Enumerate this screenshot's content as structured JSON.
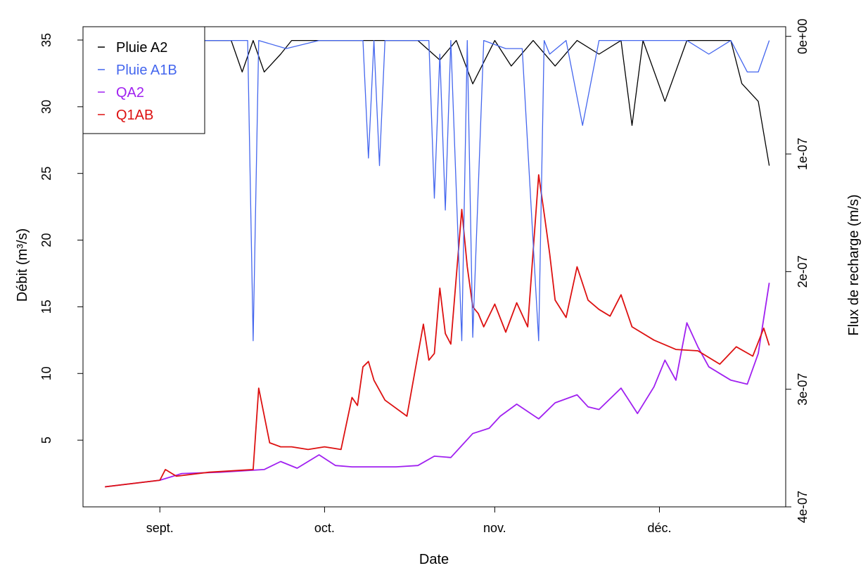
{
  "chart_data": {
    "type": "line",
    "xlabel": "Date",
    "ylabel": "Débit (m³/s)",
    "y2label": "Flux de recharge (m/s)",
    "x_ticks": [
      {
        "label": "sept.",
        "date": "2023-09-01"
      },
      {
        "label": "oct.",
        "date": "2023-10-01"
      },
      {
        "label": "nov.",
        "date": "2023-11-01"
      },
      {
        "label": "déc.",
        "date": "2023-12-01"
      }
    ],
    "xlim": [
      "2023-08-18",
      "2023-12-24"
    ],
    "ylim": [
      0,
      36
    ],
    "y_ticks": [
      5,
      10,
      15,
      20,
      25,
      30,
      35
    ],
    "y2lim": [
      -4e-07,
      8.2e-09
    ],
    "y2_ticks": [
      {
        "value": 0,
        "label": "0e+00"
      },
      {
        "value": -1e-07,
        "label": "1e-07"
      },
      {
        "value": -2e-07,
        "label": "2e-07"
      },
      {
        "value": -3e-07,
        "label": "3e-07"
      },
      {
        "value": -4e-07,
        "label": "4e-07"
      }
    ],
    "grid": false,
    "legend_position": "top-left",
    "series": [
      {
        "name": "QA2",
        "color": "#a020f0",
        "axis": "left",
        "x": [
          "2023-08-22",
          "2023-09-01",
          "2023-09-05",
          "2023-09-12",
          "2023-09-20",
          "2023-09-23",
          "2023-09-26",
          "2023-09-30",
          "2023-10-03",
          "2023-10-06",
          "2023-10-10",
          "2023-10-14",
          "2023-10-18",
          "2023-10-21",
          "2023-10-24",
          "2023-10-28",
          "2023-10-31",
          "2023-11-02",
          "2023-11-05",
          "2023-11-09",
          "2023-11-12",
          "2023-11-16",
          "2023-11-18",
          "2023-11-20",
          "2023-11-24",
          "2023-11-27",
          "2023-11-30",
          "2023-12-02",
          "2023-12-04",
          "2023-12-06",
          "2023-12-08",
          "2023-12-10",
          "2023-12-12",
          "2023-12-14",
          "2023-12-17",
          "2023-12-19",
          "2023-12-21"
        ],
        "y": [
          1.5,
          2.0,
          2.5,
          2.6,
          2.8,
          3.4,
          2.9,
          3.9,
          3.1,
          3.0,
          3.0,
          3.0,
          3.1,
          3.8,
          3.7,
          5.5,
          5.9,
          6.8,
          7.7,
          6.6,
          7.8,
          8.4,
          7.5,
          7.3,
          8.9,
          7.0,
          9.0,
          11.0,
          9.5,
          13.8,
          12.0,
          10.5,
          10.0,
          9.5,
          9.2,
          11.5,
          16.8
        ]
      },
      {
        "name": "Q1AB",
        "color": "#dd1111",
        "axis": "left",
        "x": [
          "2023-08-22",
          "2023-09-01",
          "2023-09-02",
          "2023-09-04",
          "2023-09-10",
          "2023-09-18",
          "2023-09-19",
          "2023-09-21",
          "2023-09-23",
          "2023-09-25",
          "2023-09-28",
          "2023-10-01",
          "2023-10-04",
          "2023-10-06",
          "2023-10-07",
          "2023-10-08",
          "2023-10-09",
          "2023-10-10",
          "2023-10-12",
          "2023-10-16",
          "2023-10-19",
          "2023-10-20",
          "2023-10-21",
          "2023-10-22",
          "2023-10-23",
          "2023-10-24",
          "2023-10-26",
          "2023-10-27",
          "2023-10-28",
          "2023-10-29",
          "2023-10-30",
          "2023-11-01",
          "2023-11-03",
          "2023-11-05",
          "2023-11-07",
          "2023-11-09",
          "2023-11-10",
          "2023-11-11",
          "2023-11-12",
          "2023-11-14",
          "2023-11-16",
          "2023-11-18",
          "2023-11-20",
          "2023-11-22",
          "2023-11-24",
          "2023-11-26",
          "2023-11-30",
          "2023-12-04",
          "2023-12-08",
          "2023-12-12",
          "2023-12-15",
          "2023-12-18",
          "2023-12-20",
          "2023-12-21"
        ],
        "y": [
          1.5,
          2.0,
          2.8,
          2.3,
          2.6,
          2.8,
          8.9,
          4.8,
          4.5,
          4.5,
          4.3,
          4.5,
          4.3,
          8.2,
          7.6,
          10.5,
          10.9,
          9.5,
          8.0,
          6.8,
          13.7,
          11.0,
          11.5,
          16.4,
          13.0,
          12.2,
          22.3,
          18.0,
          15.0,
          14.5,
          13.5,
          15.2,
          13.1,
          15.3,
          13.5,
          24.9,
          22.0,
          19.0,
          15.5,
          14.2,
          18.0,
          15.5,
          14.8,
          14.3,
          15.9,
          13.5,
          12.5,
          11.8,
          11.7,
          10.7,
          12.0,
          11.3,
          13.4,
          12.1
        ]
      },
      {
        "name": "Pluie A2",
        "color": "#000000",
        "axis": "right",
        "x": [
          "2023-08-18",
          "2023-08-24",
          "2023-08-30",
          "2023-09-04",
          "2023-09-09",
          "2023-09-14",
          "2023-09-16",
          "2023-09-18",
          "2023-09-20",
          "2023-09-23",
          "2023-09-25",
          "2023-09-27",
          "2023-09-30",
          "2023-10-05",
          "2023-10-10",
          "2023-10-14",
          "2023-10-18",
          "2023-10-22",
          "2023-10-25",
          "2023-10-28",
          "2023-11-01",
          "2023-11-04",
          "2023-11-08",
          "2023-11-12",
          "2023-11-16",
          "2023-11-20",
          "2023-11-24",
          "2023-11-26",
          "2023-11-28",
          "2023-12-02",
          "2023-12-06",
          "2023-12-10",
          "2023-12-14",
          "2023-12-16",
          "2023-12-19",
          "2023-12-21"
        ],
        "y": [
          -2.01e-08,
          -1.04e-08,
          -1.04e-08,
          -3.5e-09,
          -3.5e-09,
          -3.5e-09,
          -3.03e-08,
          -3.5e-09,
          -3.03e-08,
          -1.51e-08,
          -3.5e-09,
          -3.5e-09,
          -3.5e-09,
          -3.5e-09,
          -3.5e-09,
          -3.5e-09,
          -3.5e-09,
          -2.01e-08,
          -3.5e-09,
          -4.04e-08,
          -3.5e-09,
          -2.52e-08,
          -3.5e-09,
          -2.52e-08,
          -3.5e-09,
          -1.51e-08,
          -3.5e-09,
          -7.57e-08,
          -3.5e-09,
          -5.53e-08,
          -3.5e-09,
          -3.5e-09,
          -3.5e-09,
          -4.01e-08,
          -5.53e-08,
          -1.099e-07
        ]
      },
      {
        "name": "Pluie A1B",
        "color": "#4466ee",
        "axis": "right",
        "x": [
          "2023-08-18",
          "2023-08-28",
          "2023-09-06",
          "2023-09-14",
          "2023-09-17",
          "2023-09-18",
          "2023-09-19",
          "2023-09-24",
          "2023-09-30",
          "2023-10-05",
          "2023-10-08",
          "2023-10-09",
          "2023-10-10",
          "2023-10-11",
          "2023-10-12",
          "2023-10-16",
          "2023-10-20",
          "2023-10-21",
          "2023-10-22",
          "2023-10-23",
          "2023-10-24",
          "2023-10-26",
          "2023-10-27",
          "2023-10-28",
          "2023-10-30",
          "2023-11-03",
          "2023-11-06",
          "2023-11-09",
          "2023-11-10",
          "2023-11-11",
          "2023-11-14",
          "2023-11-17",
          "2023-11-20",
          "2023-11-24",
          "2023-12-01",
          "2023-12-06",
          "2023-12-10",
          "2023-12-14",
          "2023-12-17",
          "2023-12-19",
          "2023-12-21"
        ],
        "y": [
          -3.5e-09,
          -3.5e-09,
          -3.5e-09,
          -3.5e-09,
          -3.5e-09,
          -2.588e-07,
          -3.5e-09,
          -1.04e-08,
          -3.5e-09,
          -3.5e-09,
          -3.5e-09,
          -1.035e-07,
          -3.5e-09,
          -1.099e-07,
          -3.5e-09,
          -3.5e-09,
          -3.5e-09,
          -1.376e-07,
          -1.51e-08,
          -1.477e-07,
          -3.5e-09,
          -2.588e-07,
          -3.5e-09,
          -2.559e-07,
          -3.5e-09,
          -1.04e-08,
          -1.04e-08,
          -2.588e-07,
          -3.5e-09,
          -1.51e-08,
          -3.5e-09,
          -7.57e-08,
          -3.5e-09,
          -3.5e-09,
          -3.5e-09,
          -3.5e-09,
          -1.51e-08,
          -3.5e-09,
          -3.03e-08,
          -3.03e-08,
          -3.5e-09
        ]
      }
    ]
  }
}
